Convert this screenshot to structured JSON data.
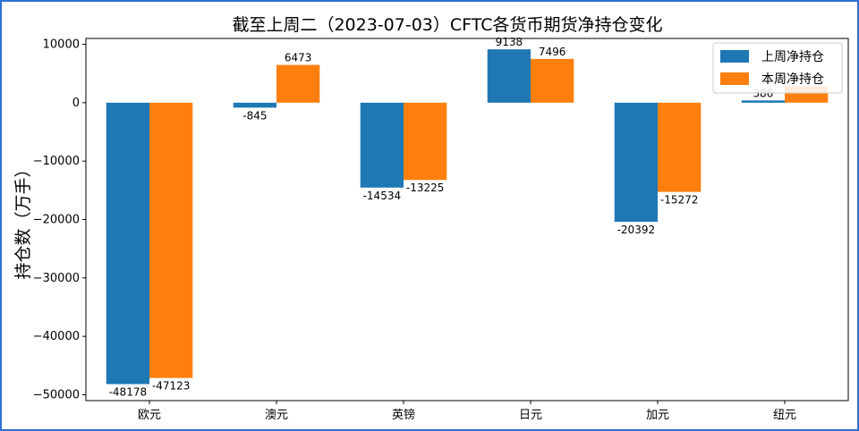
{
  "chart_data": {
    "type": "bar",
    "title": "截至上周二（2023-07-03）CFTC各货币期货净持仓变化",
    "xlabel": "",
    "ylabel": "持仓数（万手）",
    "categories": [
      "欧元",
      "澳元",
      "英镑",
      "日元",
      "加元",
      "纽元"
    ],
    "series": [
      {
        "name": "上周净持仓",
        "color": "#1f77b4",
        "values": [
          -48178,
          -845,
          -14534,
          9138,
          -20392,
          386
        ],
        "labels": [
          "-48178",
          "-845",
          "-14534",
          "9138",
          "-20392",
          "386"
        ]
      },
      {
        "name": "本周净持仓",
        "color": "#ff7f0e",
        "values": [
          -47123,
          6473,
          -13225,
          7496,
          -15272,
          2800
        ],
        "labels": [
          "-47123",
          "6473",
          "-13225",
          "7496",
          "-15272",
          ""
        ]
      }
    ],
    "ylim": [
      -51000,
      11000
    ],
    "yticks": [
      10000,
      0,
      -10000,
      -20000,
      -30000,
      -40000,
      -50000
    ],
    "ytick_labels": [
      "10000",
      "0",
      "−10000",
      "−20000",
      "−30000",
      "−40000",
      "−50000"
    ],
    "grid": false,
    "legend_position": "top-right"
  }
}
